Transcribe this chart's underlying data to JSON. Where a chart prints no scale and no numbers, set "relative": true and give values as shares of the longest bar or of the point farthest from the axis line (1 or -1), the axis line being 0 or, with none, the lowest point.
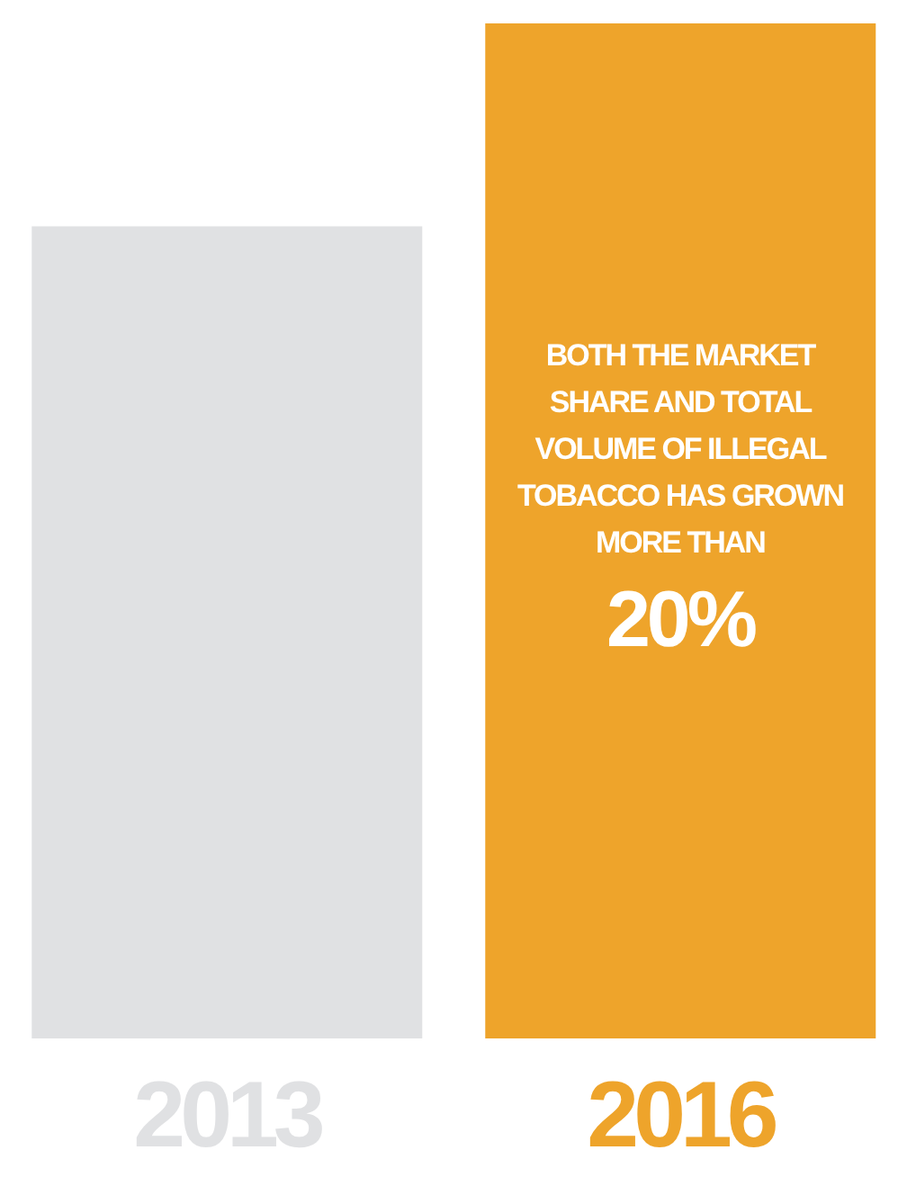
{
  "chart_data": {
    "type": "bar",
    "relative": true,
    "categories": [
      "2013",
      "2016"
    ],
    "values": [
      0.8,
      1
    ],
    "colors": [
      "#e0e1e3",
      "#eea42b"
    ],
    "annotations": [
      "BOTH THE MARKET SHARE AND TOTAL VOLUME OF ILLEGAL TOBACCO HAS GROWN MORE THAN",
      "20%"
    ]
  }
}
